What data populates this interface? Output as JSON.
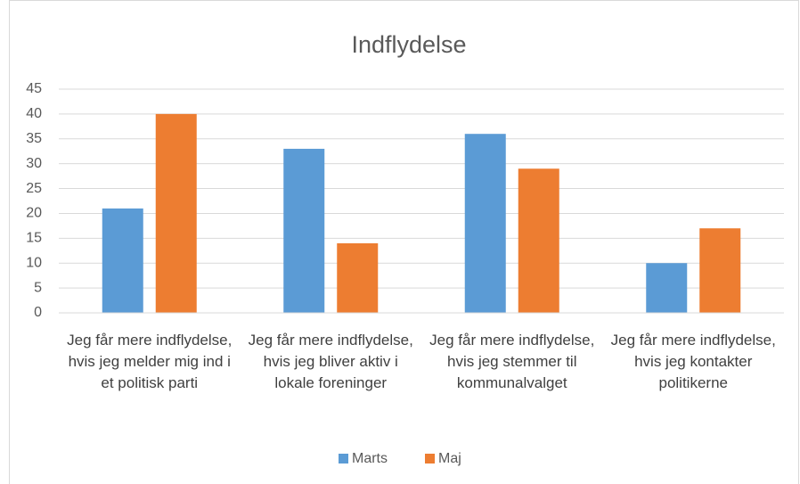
{
  "chart_data": {
    "type": "bar",
    "title": "Indflydelse",
    "categories": [
      "Jeg får mere indflydelse, hvis jeg melder mig ind i et politisk parti",
      "Jeg får mere indflydelse, hvis jeg bliver aktiv i lokale foreninger",
      "Jeg får mere indflydelse, hvis jeg stemmer til kommunalvalget",
      "Jeg får mere indflydelse, hvis jeg kontakter politikerne"
    ],
    "series": [
      {
        "name": "Marts",
        "color": "#5b9bd5",
        "values": [
          21,
          33,
          36,
          10
        ]
      },
      {
        "name": "Maj",
        "color": "#ed7d31",
        "values": [
          40,
          14,
          29,
          17
        ]
      }
    ],
    "ylim": [
      0,
      45
    ],
    "yticks": [
      0,
      5,
      10,
      15,
      20,
      25,
      30,
      35,
      40,
      45
    ],
    "grid": true,
    "legend": "bottom"
  }
}
